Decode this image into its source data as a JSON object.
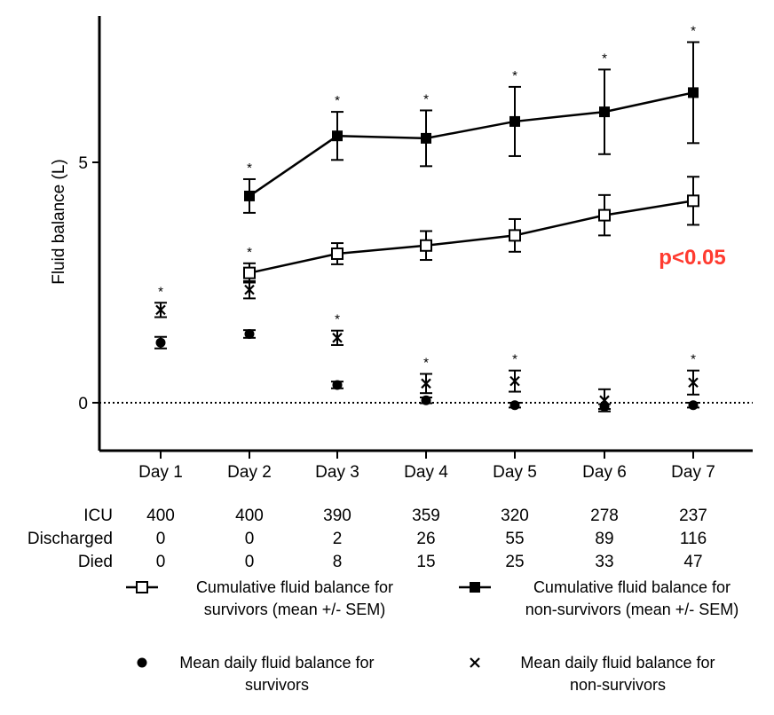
{
  "chart_data": {
    "type": "line",
    "ylabel": "Fluid balance (L)",
    "categories": [
      "Day 1",
      "Day 2",
      "Day 3",
      "Day 4",
      "Day 5",
      "Day 6",
      "Day 7"
    ],
    "y_ticks": [
      "0",
      "5"
    ],
    "ylim": [
      -1.0,
      8.0
    ],
    "baseline_dotted_at": 0,
    "annotation": "p<0.05",
    "annotation_color": "#ff3b30",
    "significance_marker": "*",
    "series": [
      {
        "name": "Cumulative fluid balance for non-survivors (mean +/- SEM)",
        "marker": "filled-square",
        "connected": true,
        "values": [
          null,
          4.3,
          5.55,
          5.5,
          5.85,
          6.05,
          6.45
        ],
        "err": [
          null,
          0.35,
          0.5,
          0.58,
          0.72,
          0.88,
          1.05
        ],
        "significant": [
          false,
          true,
          true,
          true,
          true,
          true,
          true
        ]
      },
      {
        "name": "Cumulative fluid balance for survivors (mean +/- SEM)",
        "marker": "open-square",
        "connected": true,
        "values": [
          null,
          2.7,
          3.1,
          3.27,
          3.48,
          3.9,
          4.2
        ],
        "err": [
          null,
          0.2,
          0.22,
          0.3,
          0.34,
          0.42,
          0.5
        ],
        "significant": [
          false,
          true,
          false,
          false,
          false,
          false,
          false
        ]
      },
      {
        "name": "Mean daily fluid balance for non-survivors",
        "marker": "x",
        "connected": false,
        "values": [
          1.93,
          2.35,
          1.35,
          0.4,
          0.45,
          0.05,
          0.42
        ],
        "err": [
          0.15,
          0.18,
          0.15,
          0.2,
          0.22,
          0.23,
          0.25
        ],
        "significant": [
          true,
          false,
          true,
          true,
          true,
          false,
          true
        ]
      },
      {
        "name": "Mean daily fluid balance for survivors",
        "marker": "filled-circle",
        "connected": false,
        "values": [
          1.25,
          1.43,
          0.37,
          0.05,
          -0.05,
          -0.08,
          -0.05
        ],
        "err": [
          0.12,
          0.08,
          0.07,
          0.06,
          0.05,
          0.05,
          0.05
        ],
        "significant": [
          false,
          false,
          false,
          false,
          false,
          false,
          false
        ]
      }
    ],
    "table": {
      "rows": [
        {
          "label": "ICU",
          "values": [
            "400",
            "400",
            "390",
            "359",
            "320",
            "278",
            "237"
          ]
        },
        {
          "label": "Discharged",
          "values": [
            "0",
            "0",
            "2",
            "26",
            "55",
            "89",
            "116"
          ]
        },
        {
          "label": "Died",
          "values": [
            "0",
            "0",
            "8",
            "15",
            "25",
            "33",
            "47"
          ]
        }
      ]
    },
    "legend": [
      {
        "marker": "open-square-line",
        "line1": "Cumulative fluid balance for",
        "line2": "survivors (mean +/- SEM)"
      },
      {
        "marker": "filled-square-line",
        "line1": "Cumulative fluid balance for",
        "line2": "non-survivors (mean +/- SEM)"
      },
      {
        "marker": "filled-circle",
        "line1": "Mean daily fluid balance for",
        "line2": "survivors"
      },
      {
        "marker": "x",
        "line1": "Mean daily fluid balance for",
        "line2": "non-survivors"
      }
    ]
  }
}
